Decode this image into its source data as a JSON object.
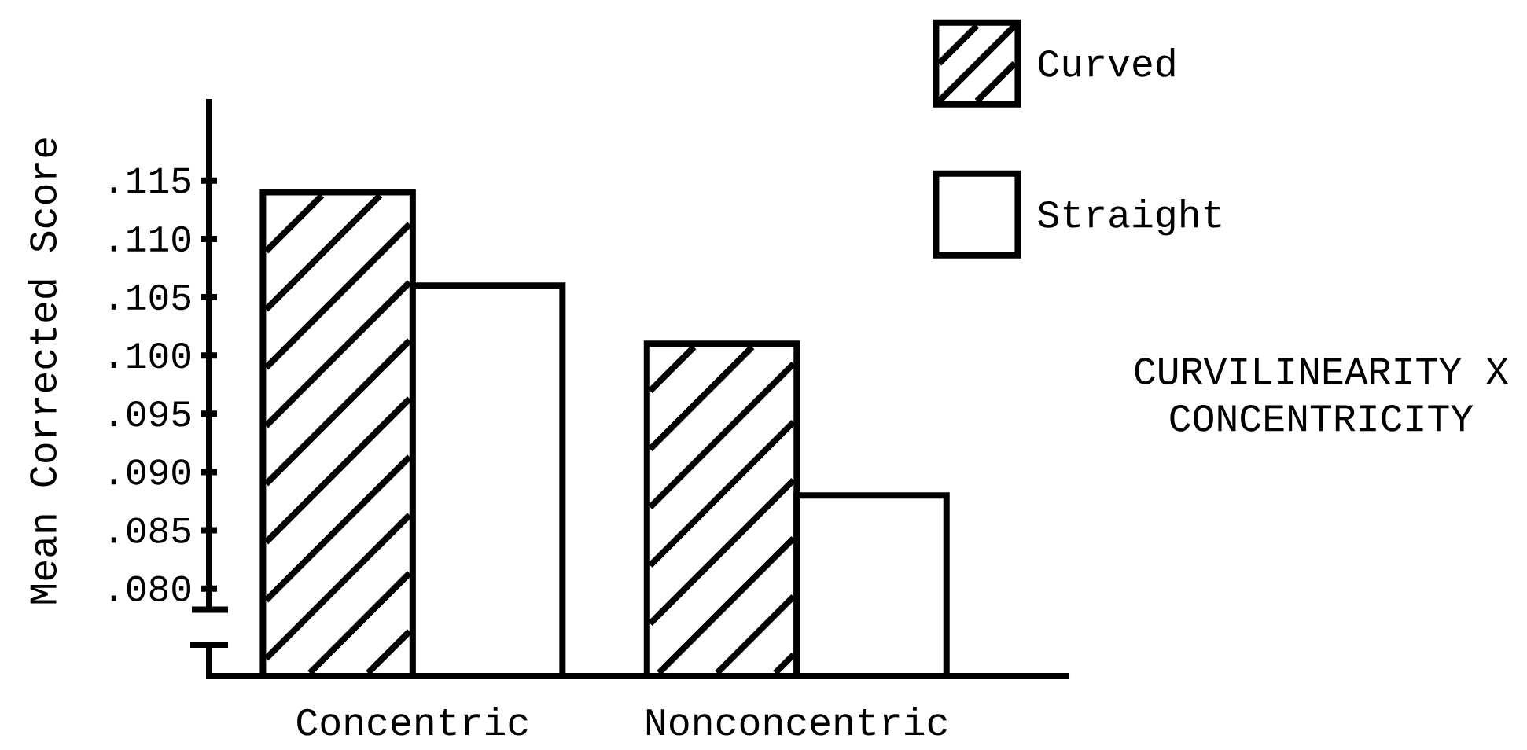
{
  "chart_data": {
    "type": "bar",
    "categories": [
      "Concentric",
      "Nonconcentric"
    ],
    "series": [
      {
        "name": "Curved",
        "color": "#000000",
        "values": [
          0.114,
          0.101
        ]
      },
      {
        "name": "Straight",
        "color": "#ffffff",
        "values": [
          0.106,
          0.088
        ]
      }
    ],
    "ylabel": "Mean Corrected Score",
    "ylim": [
      0.0725,
      0.122
    ],
    "yticks": [
      {
        "value": 0.08,
        "label": ".080"
      },
      {
        "value": 0.085,
        "label": ".085"
      },
      {
        "value": 0.09,
        "label": ".090"
      },
      {
        "value": 0.095,
        "label": ".095"
      },
      {
        "value": 0.1,
        "label": ".100"
      },
      {
        "value": 0.105,
        "label": ".105"
      },
      {
        "value": 0.11,
        "label": ".110"
      },
      {
        "value": 0.115,
        "label": ".115"
      }
    ],
    "legend": "top right",
    "annotations": [
      "CURVILINEARITY X CONCENTRICITY"
    ]
  }
}
